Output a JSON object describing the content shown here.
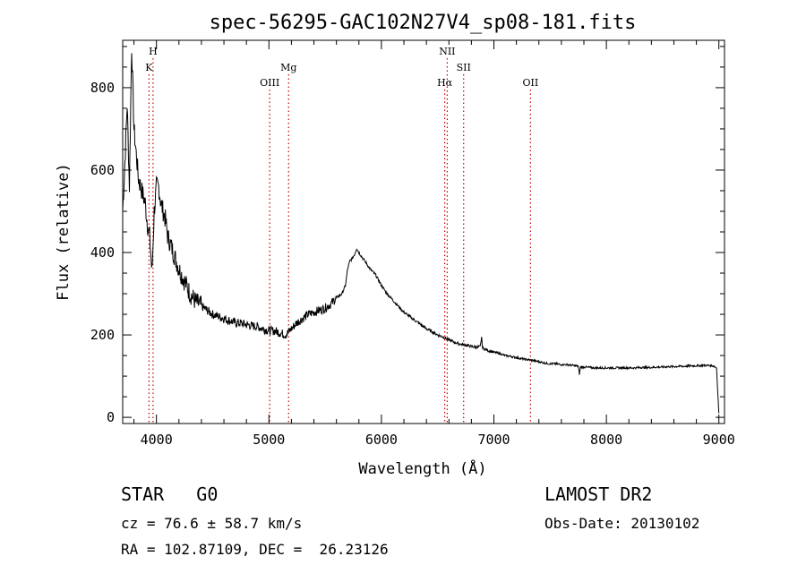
{
  "chart_data": {
    "type": "line",
    "title": "spec-56295-GAC102N27V4_sp08-181.fits",
    "xlabel": "Wavelength (Å)",
    "ylabel": "Flux (relative)",
    "xlim": [
      3700,
      9050
    ],
    "ylim": [
      -15,
      915
    ],
    "xticks": [
      4000,
      5000,
      6000,
      7000,
      8000,
      9000
    ],
    "yticks": [
      0,
      200,
      400,
      600,
      800
    ],
    "grid": false,
    "line_color": "#000000",
    "marker_color": "#cc0000",
    "series": [
      {
        "x": [
          3700,
          3720,
          3740,
          3760,
          3780,
          3800,
          3820,
          3840,
          3860,
          3880,
          3900,
          3920,
          3940,
          3960,
          3980,
          4000,
          4020,
          4040,
          4060,
          4080,
          4100,
          4150,
          4200,
          4250,
          4300,
          4350,
          4400,
          4450,
          4500,
          4550,
          4600,
          4650,
          4700,
          4750,
          4800,
          4850,
          4900,
          4950,
          5000,
          5050,
          5100,
          5150,
          5200,
          5250,
          5300,
          5350,
          5400,
          5450,
          5500,
          5550,
          5600,
          5650,
          5680,
          5700,
          5720,
          5740,
          5760,
          5780,
          5800,
          5850,
          5900,
          5950,
          6000,
          6050,
          6100,
          6150,
          6200,
          6250,
          6300,
          6350,
          6400,
          6450,
          6500,
          6550,
          6600,
          6650,
          6700,
          6750,
          6800,
          6850,
          6880,
          6890,
          6900,
          6950,
          7000,
          7050,
          7100,
          7150,
          7200,
          7250,
          7300,
          7350,
          7400,
          7450,
          7500,
          7550,
          7600,
          7650,
          7700,
          7750,
          7760,
          7770,
          7800,
          7850,
          7900,
          7950,
          8000,
          8050,
          8100,
          8150,
          8200,
          8250,
          8300,
          8350,
          8400,
          8450,
          8500,
          8550,
          8600,
          8650,
          8700,
          8750,
          8800,
          8850,
          8900,
          8950,
          8980,
          8990,
          9000
        ],
        "y": [
          500,
          620,
          760,
          560,
          900,
          700,
          640,
          580,
          560,
          540,
          520,
          470,
          440,
          350,
          500,
          560,
          560,
          520,
          500,
          480,
          440,
          400,
          360,
          330,
          300,
          280,
          270,
          260,
          250,
          245,
          240,
          235,
          230,
          228,
          225,
          222,
          220,
          215,
          210,
          210,
          205,
          200,
          215,
          230,
          240,
          250,
          255,
          260,
          265,
          275,
          290,
          300,
          320,
          360,
          380,
          385,
          395,
          410,
          400,
          380,
          360,
          345,
          320,
          300,
          285,
          270,
          255,
          245,
          235,
          225,
          215,
          208,
          200,
          195,
          188,
          182,
          178,
          175,
          172,
          170,
          172,
          195,
          168,
          162,
          158,
          155,
          150,
          148,
          145,
          142,
          140,
          138,
          135,
          132,
          130,
          130,
          128,
          128,
          126,
          124,
          105,
          122,
          122,
          121,
          120,
          120,
          120,
          120,
          120,
          120,
          120,
          120,
          121,
          121,
          121,
          122,
          122,
          123,
          123,
          124,
          124,
          125,
          125,
          126,
          126,
          125,
          120,
          60,
          10
        ]
      }
    ],
    "lines": [
      {
        "label": "H",
        "x": 3970,
        "tier": "top"
      },
      {
        "label": "K",
        "x": 3934,
        "tier": "mid"
      },
      {
        "label": "OIII",
        "x": 5007,
        "tier": "low"
      },
      {
        "label": "Mg",
        "x": 5175,
        "tier": "mid"
      },
      {
        "label": "NII",
        "x": 6585,
        "tier": "top"
      },
      {
        "label": "Hα",
        "x": 6563,
        "tier": "low"
      },
      {
        "label": "OII",
        "x": 7325,
        "tier": "low"
      },
      {
        "label": "SII",
        "x": 6731,
        "tier": "mid"
      }
    ]
  },
  "info": {
    "class": "STAR",
    "subclass": "G0",
    "survey": "LAMOST DR2",
    "cz": "cz = 76.6 ± 58.7 km/s",
    "obsdate": "Obs-Date: 20130102",
    "radec": "RA = 102.87109, DEC =  26.23126"
  }
}
